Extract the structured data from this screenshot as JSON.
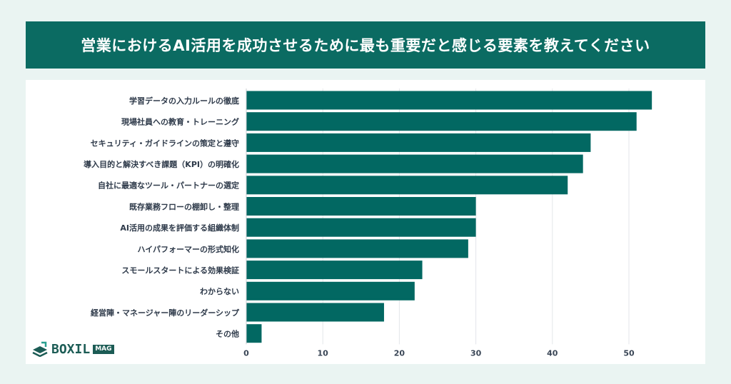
{
  "chart_data": {
    "type": "bar",
    "orientation": "horizontal",
    "title": "営業におけるAI活用を成功させるために最も重要だと感じる要素を教えてください",
    "categories": [
      "学習データの入力ルールの徹底",
      "現場社員への教育・トレーニング",
      "セキュリティ・ガイドラインの策定と遵守",
      "導入目的と解決すべき課題（KPI）の明確化",
      "自社に最適なツール・パートナーの選定",
      "既存業務フローの棚卸し・整理",
      "AI活用の成果を評価する組織体制",
      "ハイパフォーマーの形式知化",
      "スモールスタートによる効果検証",
      "わからない",
      "経営陣・マネージャー陣のリーダーシップ",
      "その他"
    ],
    "values": [
      53,
      51,
      45,
      44,
      42,
      30,
      30,
      29,
      23,
      22,
      18,
      2
    ],
    "xticks": [
      "0",
      "10",
      "20",
      "30",
      "40",
      "50"
    ],
    "xlim": [
      0,
      57
    ],
    "grid": true,
    "bar_color": "#026862",
    "title_background": "#0b6b62"
  },
  "logo": {
    "word": "BOXIL",
    "badge": "MAG"
  }
}
